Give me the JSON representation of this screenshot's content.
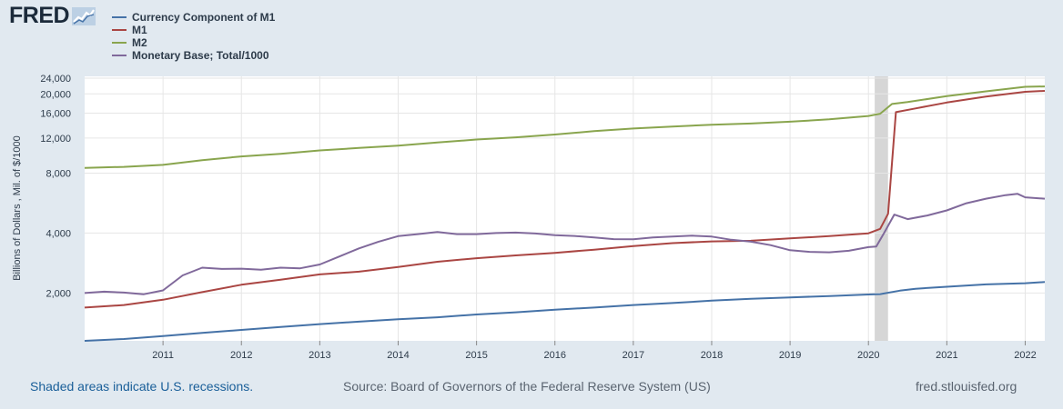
{
  "branding": {
    "logo_text": "FRED"
  },
  "footer": {
    "recession_note": "Shaded areas indicate U.S. recessions.",
    "source": "Source: Board of Governors of the Federal Reserve System (US)",
    "site": "fred.stlouisfed.org"
  },
  "chart_data": {
    "type": "line",
    "ylabel": "Billions of Dollars , Mil. of $/1000",
    "y_scale": "log",
    "ylim": [
      1150,
      24500
    ],
    "xlim": [
      2010.0,
      2022.25
    ],
    "x_ticks": [
      2011,
      2012,
      2013,
      2014,
      2015,
      2016,
      2017,
      2018,
      2019,
      2020,
      2021,
      2022
    ],
    "x_tick_labels": [
      "2011",
      "2012",
      "2013",
      "2014",
      "2015",
      "2016",
      "2017",
      "2018",
      "2019",
      "2020",
      "2021",
      "2022"
    ],
    "y_ticks": [
      2000,
      4000,
      8000,
      12000,
      16000,
      20000,
      24000
    ],
    "y_tick_labels": [
      "2,000",
      "4,000",
      "8,000",
      "12,000",
      "16,000",
      "20,000",
      "24,000"
    ],
    "grid": true,
    "legend_position": "top-left",
    "recessions": [
      [
        2020.08,
        2020.25
      ]
    ],
    "series": [
      {
        "name": "Currency Component of M1",
        "color": "#4572a7",
        "points": [
          [
            2010.0,
            1150
          ],
          [
            2010.5,
            1175
          ],
          [
            2011.0,
            1215
          ],
          [
            2011.5,
            1260
          ],
          [
            2012.0,
            1305
          ],
          [
            2012.5,
            1350
          ],
          [
            2013.0,
            1395
          ],
          [
            2013.5,
            1435
          ],
          [
            2014.0,
            1475
          ],
          [
            2014.5,
            1510
          ],
          [
            2015.0,
            1560
          ],
          [
            2015.5,
            1600
          ],
          [
            2016.0,
            1650
          ],
          [
            2016.5,
            1690
          ],
          [
            2017.0,
            1740
          ],
          [
            2017.5,
            1780
          ],
          [
            2018.0,
            1830
          ],
          [
            2018.5,
            1870
          ],
          [
            2019.0,
            1900
          ],
          [
            2019.5,
            1930
          ],
          [
            2020.0,
            1965
          ],
          [
            2020.15,
            1975
          ],
          [
            2020.4,
            2055
          ],
          [
            2020.6,
            2100
          ],
          [
            2021.0,
            2150
          ],
          [
            2021.5,
            2210
          ],
          [
            2022.0,
            2240
          ],
          [
            2022.25,
            2270
          ]
        ]
      },
      {
        "name": "M1",
        "color": "#aa4643",
        "points": [
          [
            2010.0,
            1690
          ],
          [
            2010.5,
            1740
          ],
          [
            2011.0,
            1850
          ],
          [
            2011.5,
            2020
          ],
          [
            2012.0,
            2200
          ],
          [
            2012.5,
            2330
          ],
          [
            2013.0,
            2480
          ],
          [
            2013.5,
            2560
          ],
          [
            2014.0,
            2700
          ],
          [
            2014.5,
            2870
          ],
          [
            2015.0,
            2990
          ],
          [
            2015.5,
            3090
          ],
          [
            2016.0,
            3180
          ],
          [
            2016.5,
            3300
          ],
          [
            2017.0,
            3440
          ],
          [
            2017.5,
            3560
          ],
          [
            2018.0,
            3630
          ],
          [
            2018.5,
            3660
          ],
          [
            2019.0,
            3760
          ],
          [
            2019.5,
            3860
          ],
          [
            2020.0,
            3990
          ],
          [
            2020.15,
            4200
          ],
          [
            2020.25,
            5000
          ],
          [
            2020.35,
            16200
          ],
          [
            2020.6,
            16900
          ],
          [
            2021.0,
            18100
          ],
          [
            2021.5,
            19400
          ],
          [
            2022.0,
            20500
          ],
          [
            2022.25,
            20700
          ]
        ]
      },
      {
        "name": "M2",
        "color": "#89a54e",
        "points": [
          [
            2010.0,
            8500
          ],
          [
            2010.5,
            8600
          ],
          [
            2011.0,
            8800
          ],
          [
            2011.5,
            9300
          ],
          [
            2012.0,
            9700
          ],
          [
            2012.5,
            10000
          ],
          [
            2013.0,
            10400
          ],
          [
            2013.5,
            10700
          ],
          [
            2014.0,
            11000
          ],
          [
            2014.5,
            11400
          ],
          [
            2015.0,
            11800
          ],
          [
            2015.5,
            12100
          ],
          [
            2016.0,
            12500
          ],
          [
            2016.5,
            13000
          ],
          [
            2017.0,
            13400
          ],
          [
            2017.5,
            13700
          ],
          [
            2018.0,
            14000
          ],
          [
            2018.5,
            14200
          ],
          [
            2019.0,
            14500
          ],
          [
            2019.5,
            14900
          ],
          [
            2020.0,
            15500
          ],
          [
            2020.15,
            15900
          ],
          [
            2020.3,
            17800
          ],
          [
            2020.5,
            18200
          ],
          [
            2021.0,
            19500
          ],
          [
            2021.5,
            20600
          ],
          [
            2022.0,
            21700
          ],
          [
            2022.25,
            21800
          ]
        ]
      },
      {
        "name": "Monetary Base; Total/1000",
        "color": "#80699b",
        "points": [
          [
            2010.0,
            2000
          ],
          [
            2010.25,
            2030
          ],
          [
            2010.5,
            2010
          ],
          [
            2010.75,
            1970
          ],
          [
            2011.0,
            2060
          ],
          [
            2011.25,
            2450
          ],
          [
            2011.5,
            2680
          ],
          [
            2011.75,
            2640
          ],
          [
            2012.0,
            2650
          ],
          [
            2012.25,
            2620
          ],
          [
            2012.5,
            2680
          ],
          [
            2012.75,
            2660
          ],
          [
            2013.0,
            2780
          ],
          [
            2013.25,
            3050
          ],
          [
            2013.5,
            3350
          ],
          [
            2013.75,
            3620
          ],
          [
            2014.0,
            3860
          ],
          [
            2014.25,
            3950
          ],
          [
            2014.5,
            4050
          ],
          [
            2014.75,
            3950
          ],
          [
            2015.0,
            3950
          ],
          [
            2015.25,
            4000
          ],
          [
            2015.5,
            4020
          ],
          [
            2015.75,
            3980
          ],
          [
            2016.0,
            3900
          ],
          [
            2016.25,
            3870
          ],
          [
            2016.5,
            3800
          ],
          [
            2016.75,
            3730
          ],
          [
            2017.0,
            3720
          ],
          [
            2017.25,
            3800
          ],
          [
            2017.5,
            3840
          ],
          [
            2017.75,
            3880
          ],
          [
            2018.0,
            3840
          ],
          [
            2018.25,
            3700
          ],
          [
            2018.5,
            3620
          ],
          [
            2018.75,
            3480
          ],
          [
            2019.0,
            3280
          ],
          [
            2019.25,
            3220
          ],
          [
            2019.5,
            3200
          ],
          [
            2019.75,
            3260
          ],
          [
            2020.0,
            3400
          ],
          [
            2020.1,
            3420
          ],
          [
            2020.2,
            4000
          ],
          [
            2020.33,
            4950
          ],
          [
            2020.5,
            4700
          ],
          [
            2020.75,
            4900
          ],
          [
            2021.0,
            5200
          ],
          [
            2021.25,
            5650
          ],
          [
            2021.5,
            5950
          ],
          [
            2021.75,
            6200
          ],
          [
            2021.9,
            6300
          ],
          [
            2022.0,
            6050
          ],
          [
            2022.25,
            5950
          ]
        ]
      }
    ]
  }
}
